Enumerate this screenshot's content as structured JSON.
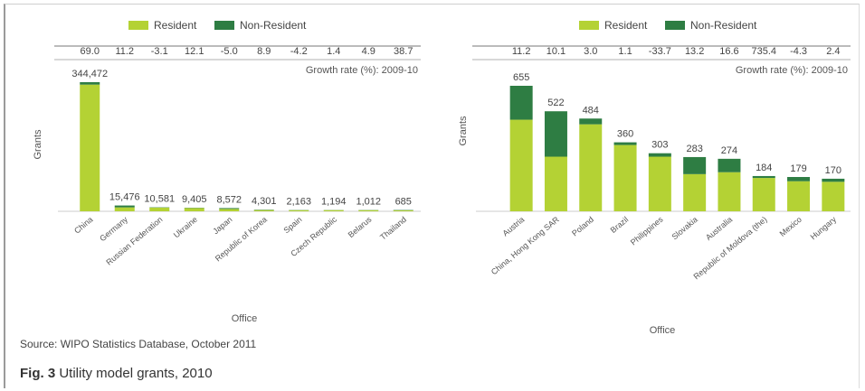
{
  "colors": {
    "resident": "#b4d234",
    "non_resident": "#2e7d43"
  },
  "chart_data": [
    {
      "type": "bar",
      "stacked": true,
      "legend": [
        "Resident",
        "Non-Resident"
      ],
      "legend_position": "top-center",
      "ylabel": "Grants",
      "xlabel": "Office",
      "growth_label": "Growth rate (%): 2009-10",
      "categories": [
        "China",
        "Germany",
        "Russian Federation",
        "Ukraine",
        "Japan",
        "Republic of Korea",
        "Spain",
        "Czech Republic",
        "Belarus",
        "Thailand"
      ],
      "growth": [
        "69.0",
        "11.2",
        "-3.1",
        "12.1",
        "-5.0",
        "8.9",
        "-4.2",
        "1.4",
        "4.9",
        "38.7"
      ],
      "total_labels": [
        "344,472",
        "15,476",
        "10,581",
        "9,405",
        "8,572",
        "4,301",
        "2,163",
        "1,194",
        "1,012",
        "685"
      ],
      "totals": [
        344472,
        15476,
        10581,
        9405,
        8572,
        4301,
        2163,
        1194,
        1012,
        685
      ],
      "series": [
        {
          "name": "Resident",
          "values": [
            338000,
            10500,
            9700,
            8600,
            6300,
            3300,
            1800,
            1050,
            860,
            500
          ]
        },
        {
          "name": "Non-Resident",
          "values": [
            6472,
            4976,
            881,
            805,
            2272,
            1001,
            363,
            144,
            152,
            185
          ]
        }
      ],
      "ylim": [
        0,
        344472
      ]
    },
    {
      "type": "bar",
      "stacked": true,
      "legend": [
        "Resident",
        "Non-Resident"
      ],
      "legend_position": "top-center",
      "ylabel": "Grants",
      "xlabel": "Office",
      "growth_label": "Growth rate (%): 2009-10",
      "categories": [
        "Austria",
        "China, Hong Kong SAR",
        "Poland",
        "Brazil",
        "Philippines",
        "Slovakia",
        "Australia",
        "Republic of Moldova (the)",
        "Mexico",
        "Hungary"
      ],
      "growth": [
        "11.2",
        "10.1",
        "3.0",
        "1.1",
        "-33.7",
        "13.2",
        "16.6",
        "735.4",
        "-4.3",
        "2.4"
      ],
      "total_labels": [
        "655",
        "522",
        "484",
        "360",
        "303",
        "283",
        "274",
        "184",
        "179",
        "170"
      ],
      "totals": [
        655,
        522,
        484,
        360,
        303,
        283,
        274,
        184,
        179,
        170
      ],
      "series": [
        {
          "name": "Resident",
          "values": [
            478,
            285,
            454,
            346,
            285,
            194,
            204,
            174,
            157,
            154
          ]
        },
        {
          "name": "Non-Resident",
          "values": [
            177,
            237,
            30,
            14,
            18,
            89,
            70,
            10,
            22,
            16
          ]
        }
      ],
      "ylim": [
        0,
        655
      ]
    }
  ],
  "source": "Source: WIPO Statistics Database, October 2011",
  "caption": {
    "label": "Fig. 3",
    "text": " Utility model grants, 2010"
  }
}
